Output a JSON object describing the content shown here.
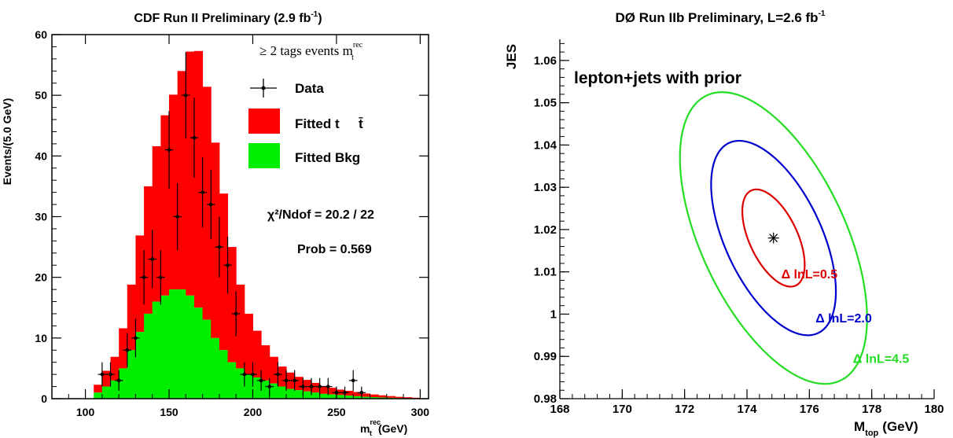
{
  "chart_data": [
    {
      "type": "bar",
      "title": "CDF Run II Preliminary (2.9 fb",
      "title_sup": "-1",
      "title_tail": ")",
      "xlabel": "m",
      "xlabel_sup": "rec",
      "xlabel_sub": "t",
      "xlabel_unit": "(GeV)",
      "ylabel": "Events/(5.0 GeV)",
      "xlim": [
        80,
        305
      ],
      "ylim": [
        0,
        60
      ],
      "x_ticks": [
        "100",
        "150",
        "200",
        "250",
        "300"
      ],
      "x_tick_values": [
        100,
        150,
        200,
        250,
        300
      ],
      "y_ticks": [
        "0",
        "10",
        "20",
        "30",
        "40",
        "50",
        "60"
      ],
      "y_tick_values": [
        0,
        10,
        20,
        30,
        40,
        50,
        60
      ],
      "bin_width": 5,
      "bin_edges": [
        105,
        110,
        115,
        120,
        125,
        130,
        135,
        140,
        145,
        150,
        155,
        160,
        165,
        170,
        175,
        180,
        185,
        190,
        195,
        200,
        205,
        210,
        215,
        220,
        225,
        230,
        235,
        240,
        245,
        250,
        255,
        260,
        265,
        270,
        275,
        280,
        285,
        290,
        295,
        300
      ],
      "series": [
        {
          "name": "Fitted Bkg",
          "color": "#00ee00",
          "values": [
            1,
            2,
            3,
            5,
            8,
            11,
            14,
            16,
            17,
            18,
            18,
            17,
            15,
            13,
            10,
            8,
            6,
            5,
            4,
            3.5,
            3,
            2.5,
            2,
            1.6,
            1.4,
            1.2,
            1,
            0.8,
            0.7,
            0.6,
            0.5,
            0.4,
            0.3,
            0.25,
            0.2,
            0.15,
            0.1,
            0.08,
            0.05
          ]
        },
        {
          "name": "Fitted tt̅",
          "color": "#ff0000",
          "values": [
            1.3,
            2.6,
            3.9,
            6.6,
            10.8,
            15.9,
            21,
            25.6,
            29.7,
            32.1,
            36,
            40.2,
            42.3,
            38.4,
            32.2,
            25.8,
            19,
            13.8,
            10,
            7.7,
            5.8,
            4.4,
            3.3,
            2.7,
            2.2,
            1.9,
            1.6,
            1.3,
            1.1,
            0.9,
            0.8,
            0.7,
            0.55,
            0.45,
            0.35,
            0.28,
            0.2,
            0.16,
            0.1
          ]
        }
      ],
      "data_points": {
        "name": "Data",
        "x": [
          110,
          115,
          120,
          125,
          130,
          135,
          140,
          145,
          150,
          155,
          160,
          165,
          170,
          175,
          180,
          185,
          190,
          195,
          200,
          205,
          210,
          215,
          220,
          225,
          230,
          235,
          240,
          245,
          250,
          255,
          260,
          265
        ],
        "y": [
          4,
          4,
          3,
          8,
          10,
          20,
          23,
          20,
          41,
          30,
          50,
          43,
          34,
          32,
          25,
          22,
          14,
          4,
          4,
          3,
          2,
          4,
          3,
          3,
          2,
          2,
          2,
          2,
          1,
          1,
          3,
          1
        ],
        "yerr": [
          2,
          2,
          1.7,
          2.8,
          3.2,
          4.5,
          4.8,
          4.5,
          6.4,
          5.5,
          7.1,
          6.6,
          5.8,
          5.7,
          5,
          4.7,
          3.7,
          2,
          2,
          1.7,
          1.4,
          2,
          1.7,
          1.7,
          1.4,
          1.4,
          1.4,
          1.4,
          1,
          1,
          1.7,
          1
        ]
      },
      "legend": {
        "header": "≥ 2 tags events m",
        "header_sup": "rec",
        "header_sub": "t",
        "entries": [
          "Data",
          "Fitted t",
          "Fitted Bkg"
        ]
      },
      "annotations": [
        "χ²/Ndof = 20.2 / 22",
        "Prob = 0.569"
      ]
    },
    {
      "type": "contour",
      "title": "DØ Run IIb Preliminary, L=2.6 fb",
      "title_sup": "-1",
      "xlabel": "M",
      "xlabel_sub": "top",
      "xlabel_unit": "(GeV)",
      "ylabel": "JES",
      "xlim": [
        168,
        180
      ],
      "ylim": [
        0.98,
        1.065
      ],
      "x_ticks": [
        "168",
        "170",
        "172",
        "174",
        "176",
        "178",
        "180"
      ],
      "x_tick_values": [
        168,
        170,
        172,
        174,
        176,
        178,
        180
      ],
      "y_ticks": [
        "0.98",
        "0.99",
        "1",
        "1.01",
        "1.02",
        "1.03",
        "1.04",
        "1.05",
        "1.06"
      ],
      "y_tick_values": [
        0.98,
        0.99,
        1.0,
        1.01,
        1.02,
        1.03,
        1.04,
        1.05,
        1.06
      ],
      "annotation": "lepton+jets with prior",
      "best_fit": {
        "x": 174.85,
        "y": 1.018
      },
      "contours": [
        {
          "label": "Δ lnL=0.5",
          "color": "#dd0000",
          "sx": 1.0,
          "sy": 0.0115,
          "rho": -0.55
        },
        {
          "label": "Δ lnL=2.0",
          "color": "#0000cc",
          "sx": 2.0,
          "sy": 0.023,
          "rho": -0.55
        },
        {
          "label": "Δ lnL=4.5",
          "color": "#22dd22",
          "sx": 3.0,
          "sy": 0.0345,
          "rho": -0.55
        }
      ]
    }
  ]
}
